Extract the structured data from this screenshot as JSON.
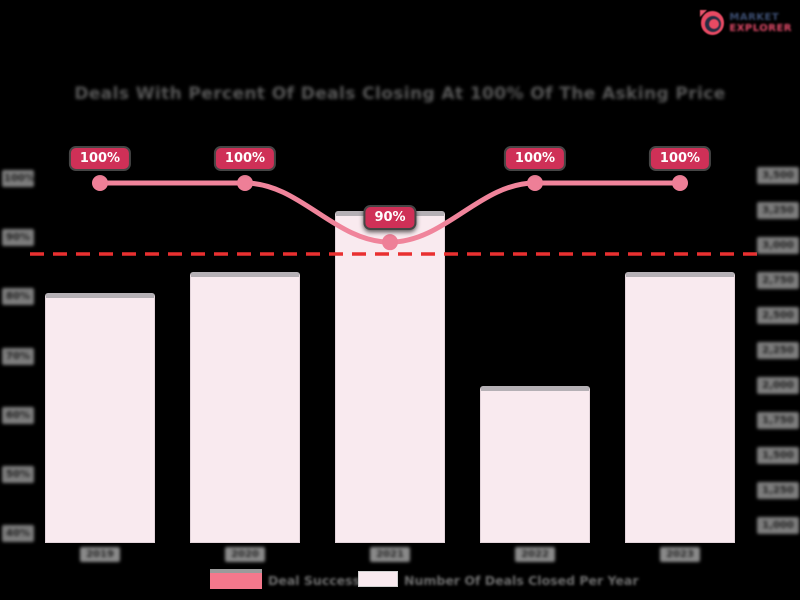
{
  "logo": {
    "icon": "globe-icon",
    "brand_line1": "MARKET",
    "brand_line2": "EXPLORER"
  },
  "title": "Deals With Percent Of Deals Closing At 100% Of The Asking Price",
  "chart_data": {
    "type": "bar",
    "subtype": "bar-line-combo",
    "categories": [
      "2019",
      "2020",
      "2021",
      "2022",
      "2023"
    ],
    "series": [
      {
        "name": "Deal Success %",
        "type": "line",
        "axis": "left",
        "unit": "%",
        "values": [
          100,
          100,
          90,
          100,
          100
        ],
        "point_labels": [
          "100%",
          "100%",
          "90%",
          "100%",
          "100%"
        ],
        "color": "#f0849b",
        "marker_color": "#ee7f97",
        "label_bg_color": "#cf3057"
      },
      {
        "name": "Number Of Deals Closed Per Year",
        "type": "bar",
        "axis": "right",
        "values": [
          2670,
          2820,
          3260,
          2010,
          2820
        ],
        "color": "#f9eaef"
      }
    ],
    "threshold_line": {
      "axis": "left",
      "value": 88,
      "style": "dashed",
      "color": "#e93030"
    },
    "left_axis": {
      "ticks": [
        "100%",
        "90%",
        "80%",
        "70%",
        "60%",
        "50%",
        "40%"
      ],
      "range": [
        40,
        100
      ]
    },
    "right_axis": {
      "ticks": [
        "3,500",
        "3,250",
        "3,000",
        "2,750",
        "2,500",
        "2,250",
        "2,000",
        "1,750",
        "1,500",
        "1,250",
        "1,000"
      ],
      "range": [
        900,
        3500
      ]
    },
    "legend": [
      {
        "label": "Deal Success %",
        "swatch_color": "#f4788c"
      },
      {
        "label": "Number Of Deals Closed Per Year",
        "swatch_color": "#f9eaef"
      }
    ],
    "grid": false,
    "legend_position": "bottom",
    "background": "#000000"
  }
}
